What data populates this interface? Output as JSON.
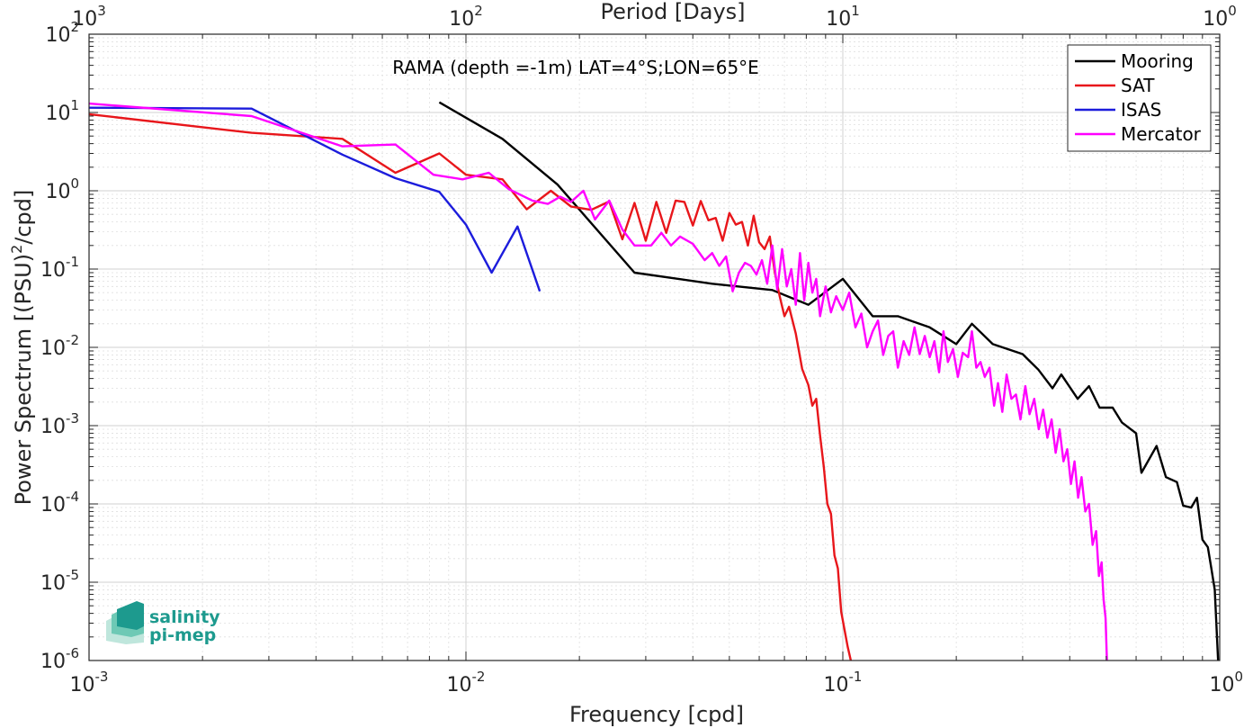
{
  "chart_data": {
    "type": "line",
    "title": "RAMA (depth =-1m) LAT=4°S;LON=65°E",
    "xlabel": "Frequency [cpd]",
    "ylabel": "Power Spectrum [(PSU)²/cpd]",
    "top_xlabel": "Period [Days]",
    "x_scale": "log",
    "y_scale": "log",
    "xlim": [
      0.001,
      1
    ],
    "ylim": [
      1e-06,
      100
    ],
    "grid": true,
    "legend_position": "top-right",
    "x_ticks": [
      {
        "value": 0.001,
        "base": "10",
        "exp": "-3"
      },
      {
        "value": 0.01,
        "base": "10",
        "exp": "-2"
      },
      {
        "value": 0.1,
        "base": "10",
        "exp": "-1"
      },
      {
        "value": 1,
        "base": "10",
        "exp": "0"
      }
    ],
    "top_ticks": [
      {
        "value": 0.001,
        "base": "10",
        "exp": "3"
      },
      {
        "value": 0.01,
        "base": "10",
        "exp": "2"
      },
      {
        "value": 0.1,
        "base": "10",
        "exp": "1"
      },
      {
        "value": 1,
        "base": "10",
        "exp": "0"
      }
    ],
    "y_ticks": [
      {
        "value": 100,
        "base": "10",
        "exp": "2"
      },
      {
        "value": 10,
        "base": "10",
        "exp": "1"
      },
      {
        "value": 1,
        "base": "10",
        "exp": "0"
      },
      {
        "value": 0.1,
        "base": "10",
        "exp": "-1"
      },
      {
        "value": 0.01,
        "base": "10",
        "exp": "-2"
      },
      {
        "value": 0.001,
        "base": "10",
        "exp": "-3"
      },
      {
        "value": 0.0001,
        "base": "10",
        "exp": "-4"
      },
      {
        "value": 1e-05,
        "base": "10",
        "exp": "-5"
      },
      {
        "value": 1e-06,
        "base": "10",
        "exp": "-6"
      }
    ],
    "series": [
      {
        "name": "Mooring",
        "color": "#000000",
        "points": [
          [
            0.0085,
            13.5
          ],
          [
            0.0125,
            4.6
          ],
          [
            0.0175,
            1.2
          ],
          [
            0.028,
            0.09
          ],
          [
            0.045,
            0.065
          ],
          [
            0.065,
            0.054
          ],
          [
            0.081,
            0.035
          ],
          [
            0.1,
            0.075
          ],
          [
            0.12,
            0.025
          ],
          [
            0.14,
            0.025
          ],
          [
            0.17,
            0.018
          ],
          [
            0.2,
            0.011
          ],
          [
            0.22,
            0.02
          ],
          [
            0.25,
            0.011
          ],
          [
            0.3,
            0.0082
          ],
          [
            0.33,
            0.0052
          ],
          [
            0.36,
            0.003
          ],
          [
            0.38,
            0.0045
          ],
          [
            0.42,
            0.0022
          ],
          [
            0.45,
            0.0032
          ],
          [
            0.48,
            0.0017
          ],
          [
            0.52,
            0.0017
          ],
          [
            0.55,
            0.0011
          ],
          [
            0.6,
            0.0008
          ],
          [
            0.62,
            0.00025
          ],
          [
            0.68,
            0.00055
          ],
          [
            0.72,
            0.00022
          ],
          [
            0.77,
            0.00019
          ],
          [
            0.8,
            9.5e-05
          ],
          [
            0.84,
            9e-05
          ],
          [
            0.87,
            0.00012
          ],
          [
            0.9,
            3.5e-05
          ],
          [
            0.93,
            2.8e-05
          ],
          [
            0.95,
            1.5e-05
          ],
          [
            0.97,
            8e-06
          ],
          [
            0.99,
            1e-06
          ]
        ]
      },
      {
        "name": "SAT",
        "color": "#e8161b",
        "points": [
          [
            0.001,
            9.5
          ],
          [
            0.0027,
            5.5
          ],
          [
            0.0047,
            4.6
          ],
          [
            0.0065,
            1.7
          ],
          [
            0.0085,
            3.0
          ],
          [
            0.01,
            1.6
          ],
          [
            0.0125,
            1.4
          ],
          [
            0.0145,
            0.58
          ],
          [
            0.0168,
            1.0
          ],
          [
            0.019,
            0.63
          ],
          [
            0.0215,
            0.57
          ],
          [
            0.024,
            0.73
          ],
          [
            0.026,
            0.24
          ],
          [
            0.028,
            0.7
          ],
          [
            0.03,
            0.23
          ],
          [
            0.032,
            0.72
          ],
          [
            0.034,
            0.29
          ],
          [
            0.036,
            0.75
          ],
          [
            0.038,
            0.72
          ],
          [
            0.04,
            0.36
          ],
          [
            0.042,
            0.74
          ],
          [
            0.044,
            0.42
          ],
          [
            0.046,
            0.45
          ],
          [
            0.048,
            0.23
          ],
          [
            0.05,
            0.52
          ],
          [
            0.052,
            0.37
          ],
          [
            0.054,
            0.4
          ],
          [
            0.056,
            0.2
          ],
          [
            0.058,
            0.48
          ],
          [
            0.06,
            0.22
          ],
          [
            0.062,
            0.18
          ],
          [
            0.064,
            0.26
          ],
          [
            0.066,
            0.09
          ],
          [
            0.068,
            0.045
          ],
          [
            0.07,
            0.025
          ],
          [
            0.072,
            0.033
          ],
          [
            0.075,
            0.015
          ],
          [
            0.078,
            0.0053
          ],
          [
            0.081,
            0.0033
          ],
          [
            0.083,
            0.0018
          ],
          [
            0.085,
            0.0022
          ],
          [
            0.087,
            0.00075
          ],
          [
            0.089,
            0.0003
          ],
          [
            0.091,
            0.0001
          ],
          [
            0.093,
            7.5e-05
          ],
          [
            0.095,
            2.2e-05
          ],
          [
            0.097,
            1.5e-05
          ],
          [
            0.099,
            4.2e-06
          ],
          [
            0.101,
            2.5e-06
          ],
          [
            0.103,
            1.5e-06
          ],
          [
            0.105,
            1e-06
          ]
        ]
      },
      {
        "name": "ISAS",
        "color": "#1c1cdc",
        "points": [
          [
            0.001,
            11.5
          ],
          [
            0.0027,
            11.2
          ],
          [
            0.0047,
            2.9
          ],
          [
            0.0065,
            1.45
          ],
          [
            0.0085,
            0.97
          ],
          [
            0.01,
            0.37
          ],
          [
            0.0117,
            0.09
          ],
          [
            0.0137,
            0.35
          ],
          [
            0.0157,
            0.052
          ]
        ]
      },
      {
        "name": "Mercator",
        "color": "#ff00ff",
        "points": [
          [
            0.001,
            13.0
          ],
          [
            0.0027,
            9.0
          ],
          [
            0.0047,
            3.7
          ],
          [
            0.0065,
            3.9
          ],
          [
            0.0082,
            1.6
          ],
          [
            0.0098,
            1.4
          ],
          [
            0.0115,
            1.7
          ],
          [
            0.013,
            1.05
          ],
          [
            0.015,
            0.75
          ],
          [
            0.0165,
            0.68
          ],
          [
            0.0178,
            0.84
          ],
          [
            0.019,
            0.72
          ],
          [
            0.0205,
            1.0
          ],
          [
            0.022,
            0.43
          ],
          [
            0.024,
            0.75
          ],
          [
            0.026,
            0.32
          ],
          [
            0.028,
            0.2
          ],
          [
            0.031,
            0.2
          ],
          [
            0.033,
            0.29
          ],
          [
            0.035,
            0.2
          ],
          [
            0.037,
            0.26
          ],
          [
            0.04,
            0.21
          ],
          [
            0.043,
            0.13
          ],
          [
            0.045,
            0.16
          ],
          [
            0.047,
            0.11
          ],
          [
            0.049,
            0.145
          ],
          [
            0.051,
            0.052
          ],
          [
            0.053,
            0.09
          ],
          [
            0.055,
            0.12
          ],
          [
            0.057,
            0.11
          ],
          [
            0.059,
            0.085
          ],
          [
            0.061,
            0.13
          ],
          [
            0.063,
            0.065
          ],
          [
            0.065,
            0.2
          ],
          [
            0.067,
            0.055
          ],
          [
            0.069,
            0.18
          ],
          [
            0.071,
            0.06
          ],
          [
            0.073,
            0.1
          ],
          [
            0.075,
            0.035
          ],
          [
            0.077,
            0.16
          ],
          [
            0.079,
            0.04
          ],
          [
            0.081,
            0.12
          ],
          [
            0.083,
            0.05
          ],
          [
            0.085,
            0.075
          ],
          [
            0.087,
            0.025
          ],
          [
            0.09,
            0.06
          ],
          [
            0.093,
            0.028
          ],
          [
            0.096,
            0.045
          ],
          [
            0.1,
            0.03
          ],
          [
            0.104,
            0.05
          ],
          [
            0.108,
            0.018
          ],
          [
            0.112,
            0.027
          ],
          [
            0.116,
            0.01
          ],
          [
            0.12,
            0.016
          ],
          [
            0.124,
            0.022
          ],
          [
            0.128,
            0.008
          ],
          [
            0.132,
            0.014
          ],
          [
            0.136,
            0.016
          ],
          [
            0.14,
            0.0055
          ],
          [
            0.145,
            0.012
          ],
          [
            0.15,
            0.008
          ],
          [
            0.155,
            0.018
          ],
          [
            0.16,
            0.0082
          ],
          [
            0.165,
            0.014
          ],
          [
            0.17,
            0.0075
          ],
          [
            0.175,
            0.012
          ],
          [
            0.18,
            0.0048
          ],
          [
            0.185,
            0.016
          ],
          [
            0.19,
            0.0065
          ],
          [
            0.196,
            0.0095
          ],
          [
            0.202,
            0.0042
          ],
          [
            0.208,
            0.0085
          ],
          [
            0.215,
            0.0075
          ],
          [
            0.22,
            0.016
          ],
          [
            0.226,
            0.0055
          ],
          [
            0.232,
            0.0065
          ],
          [
            0.238,
            0.0042
          ],
          [
            0.245,
            0.0055
          ],
          [
            0.252,
            0.0018
          ],
          [
            0.258,
            0.0035
          ],
          [
            0.265,
            0.0015
          ],
          [
            0.272,
            0.0045
          ],
          [
            0.28,
            0.0022
          ],
          [
            0.288,
            0.0025
          ],
          [
            0.296,
            0.0012
          ],
          [
            0.305,
            0.0032
          ],
          [
            0.313,
            0.0014
          ],
          [
            0.322,
            0.0022
          ],
          [
            0.331,
            0.0009
          ],
          [
            0.34,
            0.0016
          ],
          [
            0.349,
            0.0007
          ],
          [
            0.358,
            0.0012
          ],
          [
            0.367,
            0.00045
          ],
          [
            0.376,
            0.0009
          ],
          [
            0.385,
            0.00035
          ],
          [
            0.394,
            0.0005
          ],
          [
            0.403,
            0.00018
          ],
          [
            0.412,
            0.00035
          ],
          [
            0.421,
            0.00012
          ],
          [
            0.43,
            0.00022
          ],
          [
            0.44,
            8e-05
          ],
          [
            0.45,
            0.0001
          ],
          [
            0.46,
            3e-05
          ],
          [
            0.47,
            4.5e-05
          ],
          [
            0.478,
            1.2e-05
          ],
          [
            0.486,
            1.8e-05
          ],
          [
            0.492,
            6e-06
          ],
          [
            0.498,
            3.5e-06
          ],
          [
            0.502,
            1e-06
          ]
        ]
      }
    ]
  },
  "logo": {
    "line1": "salinity",
    "line2": "pi-mep"
  },
  "colors": {
    "axis": "#262626",
    "grid": "#dfdfdf",
    "logo": "#1d9a8e"
  }
}
